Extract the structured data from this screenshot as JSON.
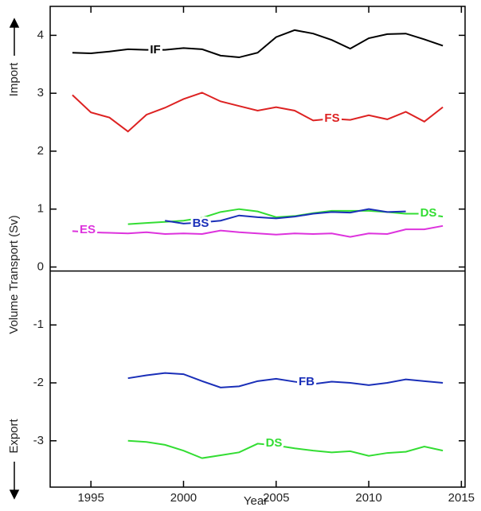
{
  "chart_data": {
    "type": "line",
    "x_label": "Year",
    "y_label": "Volume Transport (Sv)",
    "annotations": {
      "import": "Import",
      "export": "Export"
    },
    "xlim": [
      1992.8,
      2015.2
    ],
    "xticks": [
      1995,
      2000,
      2005,
      2010,
      2015
    ],
    "ylim": [
      -3.8,
      4.5
    ],
    "yticks": [
      4,
      3,
      2,
      1,
      0,
      -1,
      -2,
      -3
    ],
    "series": [
      {
        "name": "IF",
        "color": "#000000",
        "x": [
          1994,
          1995,
          1996,
          1997,
          1998,
          1999,
          2000,
          2001,
          2002,
          2003,
          2004,
          2005,
          2006,
          2007,
          2008,
          2009,
          2010,
          2011,
          2012,
          2013,
          2014
        ],
        "values": [
          3.7,
          3.69,
          3.72,
          3.76,
          3.75,
          3.75,
          3.78,
          3.76,
          3.65,
          3.62,
          3.7,
          3.97,
          4.09,
          4.03,
          3.92,
          3.77,
          3.95,
          4.02,
          4.03,
          3.93,
          3.82
        ]
      },
      {
        "name": "FS",
        "color": "#dd2222",
        "x": [
          1994,
          1995,
          1996,
          1997,
          1998,
          1999,
          2000,
          2001,
          2002,
          2003,
          2004,
          2005,
          2006,
          2007,
          2008,
          2009,
          2010,
          2011,
          2012,
          2013,
          2014
        ],
        "values": [
          2.97,
          2.67,
          2.58,
          2.34,
          2.63,
          2.75,
          2.9,
          3.01,
          2.86,
          2.78,
          2.7,
          2.76,
          2.7,
          2.53,
          2.56,
          2.54,
          2.62,
          2.55,
          2.68,
          2.51,
          2.76
        ]
      },
      {
        "name": "DS",
        "color": "#33dd33",
        "x": [
          1997,
          1998,
          1999,
          2000,
          2001,
          2002,
          2003,
          2004,
          2005,
          2006,
          2007,
          2008,
          2009,
          2010,
          2011,
          2012,
          2013,
          2014
        ],
        "values": [
          0.74,
          0.76,
          0.78,
          0.8,
          0.85,
          0.95,
          1.0,
          0.96,
          0.86,
          0.88,
          0.93,
          0.97,
          0.97,
          0.97,
          0.95,
          0.92,
          0.92,
          0.87
        ]
      },
      {
        "name": "BS",
        "color": "#1a2fb8",
        "x": [
          1999,
          2000,
          2001,
          2002,
          2003,
          2004,
          2005,
          2006,
          2007,
          2008,
          2009,
          2010,
          2011,
          2012
        ],
        "values": [
          0.8,
          0.75,
          0.77,
          0.8,
          0.89,
          0.86,
          0.84,
          0.87,
          0.92,
          0.95,
          0.94,
          1.0,
          0.95,
          0.96
        ]
      },
      {
        "name": "ES",
        "color": "#dd33dd",
        "x": [
          1994,
          1995,
          1996,
          1997,
          1998,
          1999,
          2000,
          2001,
          2002,
          2003,
          2004,
          2005,
          2006,
          2007,
          2008,
          2009,
          2010,
          2011,
          2012,
          2013,
          2014
        ],
        "values": [
          0.62,
          0.6,
          0.59,
          0.58,
          0.6,
          0.57,
          0.58,
          0.57,
          0.63,
          0.6,
          0.58,
          0.56,
          0.58,
          0.57,
          0.58,
          0.52,
          0.58,
          0.57,
          0.65,
          0.65,
          0.71
        ]
      },
      {
        "name": "FB",
        "color": "#1a2fb8",
        "x": [
          1997,
          1998,
          1999,
          2000,
          2001,
          2002,
          2003,
          2004,
          2005,
          2006,
          2007,
          2008,
          2009,
          2010,
          2011,
          2012,
          2013,
          2014
        ],
        "values": [
          -1.92,
          -1.87,
          -1.83,
          -1.85,
          -1.97,
          -2.08,
          -2.06,
          -1.97,
          -1.93,
          -1.98,
          -2.02,
          -1.98,
          -2.0,
          -2.04,
          -2.0,
          -1.94,
          -1.97,
          -2.0
        ]
      },
      {
        "name": "DS",
        "color": "#33dd33",
        "x": [
          1997,
          1998,
          1999,
          2000,
          2001,
          2002,
          2003,
          2004,
          2005,
          2006,
          2007,
          2008,
          2009,
          2010,
          2011,
          2012,
          2013,
          2014
        ],
        "values": [
          -3.0,
          -3.02,
          -3.07,
          -3.17,
          -3.3,
          -3.25,
          -3.2,
          -3.05,
          -3.08,
          -3.13,
          -3.17,
          -3.2,
          -3.18,
          -3.26,
          -3.21,
          -3.19,
          -3.1,
          -3.17
        ]
      }
    ]
  }
}
